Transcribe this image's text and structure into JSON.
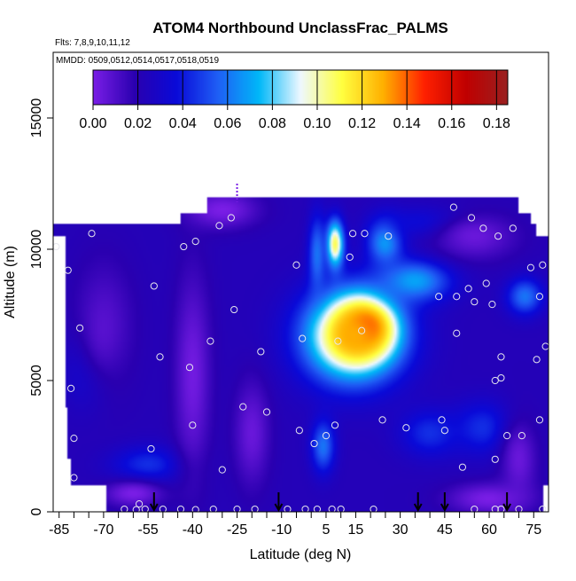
{
  "chart_data": {
    "type": "heatmap",
    "title": "ATOM4 Northbound UnclassFrac_PALMS",
    "subtitle_flights": "Flts: 7,8,9,10,11,12",
    "subtitle_dates": "MMDD: 0509,0512,0514,0517,0518,0519",
    "xlabel": "Latitude (deg N)",
    "ylabel": "Altitude (m)",
    "xlim": [
      -87,
      80
    ],
    "ylim": [
      0,
      17500
    ],
    "x_ticks": [
      -85,
      -70,
      -55,
      -40,
      -25,
      -10,
      5,
      15,
      30,
      45,
      60,
      75
    ],
    "x_minor_ticks": [
      -80,
      -75,
      -65,
      -60,
      -50,
      -45,
      -35,
      -30,
      -20,
      -15,
      -5,
      0,
      10,
      20,
      25,
      35,
      40,
      50,
      55,
      65,
      70
    ],
    "y_ticks": [
      0,
      5000,
      10000,
      15000
    ],
    "colorbar": {
      "min": 0.0,
      "max": 0.185,
      "tick_values": [
        0.0,
        0.02,
        0.04,
        0.06,
        0.08,
        0.1,
        0.12,
        0.14,
        0.16,
        0.18
      ],
      "tick_labels": [
        "0.00",
        "0.02",
        "0.04",
        "0.06",
        "0.08",
        "0.10",
        "0.12",
        "0.14",
        "0.16",
        "0.18"
      ],
      "colors": [
        "#7a1ee6",
        "#2a00b0",
        "#0a0ad8",
        "#1f5ef5",
        "#00b8f8",
        "#eef8ff",
        "#ffff40",
        "#ffb000",
        "#ff2000",
        "#c00000",
        "#9a2020"
      ]
    },
    "data_extent": {
      "rows": [
        {
          "alt_min": 0,
          "alt_max": 1000,
          "lat_min": -69,
          "lat_max": 78
        },
        {
          "alt_min": 1000,
          "alt_max": 2000,
          "lat_min": -81,
          "lat_max": 80
        },
        {
          "alt_min": 2000,
          "alt_max": 4000,
          "lat_min": -82,
          "lat_max": 80
        },
        {
          "alt_min": 4000,
          "alt_max": 10500,
          "lat_min": -83,
          "lat_max": 80
        },
        {
          "alt_min": 10500,
          "alt_max": 11000,
          "lat_min": -87,
          "lat_max": 76
        },
        {
          "alt_min": 11000,
          "alt_max": 11400,
          "lat_min": -44,
          "lat_max": 74
        },
        {
          "alt_min": 11400,
          "alt_max": 12000,
          "lat_min": -35,
          "lat_max": 70
        }
      ]
    },
    "hotspots": [
      {
        "lat": 18,
        "alt": 7000,
        "value": 0.18,
        "radius_lat": 9,
        "radius_alt": 1000
      },
      {
        "lat": 14,
        "alt": 6700,
        "value": 0.13,
        "radius_lat": 16,
        "radius_alt": 1700
      },
      {
        "lat": 8,
        "alt": 10200,
        "value": 0.11,
        "radius_lat": 3,
        "radius_alt": 900
      },
      {
        "lat": 25,
        "alt": 10300,
        "value": 0.07,
        "radius_lat": 6,
        "radius_alt": 900
      },
      {
        "lat": 35,
        "alt": 8800,
        "value": 0.07,
        "radius_lat": 12,
        "radius_alt": 800
      },
      {
        "lat": 72,
        "alt": 8200,
        "value": 0.06,
        "radius_lat": 6,
        "radius_alt": 700
      },
      {
        "lat": 4,
        "alt": 2500,
        "value": 0.06,
        "radius_lat": 4,
        "radius_alt": 1000
      },
      {
        "lat": 2,
        "alt": 9800,
        "value": 0.06,
        "radius_lat": 3,
        "radius_alt": 1500
      },
      {
        "lat": -55,
        "alt": 1800,
        "value": 0.045,
        "radius_lat": 12,
        "radius_alt": 700
      },
      {
        "lat": 58,
        "alt": 3200,
        "value": 0.045,
        "radius_lat": 10,
        "radius_alt": 1000
      },
      {
        "lat": 40,
        "alt": 3000,
        "value": 0.045,
        "radius_lat": 10,
        "radius_alt": 900
      },
      {
        "lat": -75,
        "alt": 5500,
        "value": 0.04,
        "radius_lat": 8,
        "radius_alt": 1500
      },
      {
        "lat": 40,
        "alt": 11000,
        "value": 0.04,
        "radius_lat": 15,
        "radius_alt": 600
      },
      {
        "lat": -40,
        "alt": 5200,
        "value": 0.002,
        "radius_lat": 6,
        "radius_alt": 3800
      },
      {
        "lat": -70,
        "alt": 7000,
        "value": 0.008,
        "radius_lat": 10,
        "radius_alt": 2500
      },
      {
        "lat": -30,
        "alt": 11500,
        "value": 0.0,
        "radius_lat": 12,
        "radius_alt": 700
      },
      {
        "lat": -20,
        "alt": 3000,
        "value": 0.004,
        "radius_lat": 6,
        "radius_alt": 2000
      },
      {
        "lat": 60,
        "alt": 500,
        "value": 0.0,
        "radius_lat": 14,
        "radius_alt": 600
      },
      {
        "lat": 55,
        "alt": 10500,
        "value": 0.004,
        "radius_lat": 14,
        "radius_alt": 900
      },
      {
        "lat": -60,
        "alt": 700,
        "value": 0.0,
        "radius_lat": 10,
        "radius_alt": 500
      },
      {
        "lat": 70,
        "alt": 2000,
        "value": 0.004,
        "radius_lat": 6,
        "radius_alt": 1500
      }
    ],
    "background_value": 0.022,
    "observation_points": [
      {
        "lat": -86,
        "alt": 10100
      },
      {
        "lat": -74,
        "alt": 10600
      },
      {
        "lat": -82,
        "alt": 9200
      },
      {
        "lat": -78,
        "alt": 7000
      },
      {
        "lat": -81,
        "alt": 4700
      },
      {
        "lat": -80,
        "alt": 2800
      },
      {
        "lat": -80,
        "alt": 1300
      },
      {
        "lat": -53,
        "alt": 8600
      },
      {
        "lat": -51,
        "alt": 5900
      },
      {
        "lat": -54,
        "alt": 2400
      },
      {
        "lat": -58,
        "alt": 300
      },
      {
        "lat": -43,
        "alt": 10100
      },
      {
        "lat": -39,
        "alt": 10300
      },
      {
        "lat": -41,
        "alt": 5500
      },
      {
        "lat": -40,
        "alt": 3300
      },
      {
        "lat": -34,
        "alt": 6500
      },
      {
        "lat": -31,
        "alt": 10900
      },
      {
        "lat": -27,
        "alt": 11200
      },
      {
        "lat": -30,
        "alt": 1600
      },
      {
        "lat": -26,
        "alt": 7700
      },
      {
        "lat": -23,
        "alt": 4000
      },
      {
        "lat": -17,
        "alt": 6100
      },
      {
        "lat": -15,
        "alt": 3800
      },
      {
        "lat": -5,
        "alt": 9400
      },
      {
        "lat": -4,
        "alt": 3100
      },
      {
        "lat": -3,
        "alt": 6600
      },
      {
        "lat": 1,
        "alt": 2600
      },
      {
        "lat": 5,
        "alt": 2900
      },
      {
        "lat": 9,
        "alt": 6500
      },
      {
        "lat": 8,
        "alt": 3300
      },
      {
        "lat": 13,
        "alt": 9700
      },
      {
        "lat": 14,
        "alt": 10600
      },
      {
        "lat": 18,
        "alt": 10600
      },
      {
        "lat": 17,
        "alt": 6900
      },
      {
        "lat": 24,
        "alt": 3500
      },
      {
        "lat": 26,
        "alt": 10500
      },
      {
        "lat": 32,
        "alt": 3200
      },
      {
        "lat": 43,
        "alt": 8200
      },
      {
        "lat": 44,
        "alt": 3500
      },
      {
        "lat": 45,
        "alt": 3100
      },
      {
        "lat": 48,
        "alt": 11600
      },
      {
        "lat": 49,
        "alt": 8200
      },
      {
        "lat": 49,
        "alt": 6800
      },
      {
        "lat": 51,
        "alt": 1700
      },
      {
        "lat": 53,
        "alt": 8500
      },
      {
        "lat": 54,
        "alt": 11200
      },
      {
        "lat": 55,
        "alt": 8000
      },
      {
        "lat": 58,
        "alt": 10800
      },
      {
        "lat": 59,
        "alt": 8700
      },
      {
        "lat": 61,
        "alt": 7900
      },
      {
        "lat": 62,
        "alt": 2000
      },
      {
        "lat": 62,
        "alt": 5000
      },
      {
        "lat": 63,
        "alt": 10500
      },
      {
        "lat": 64,
        "alt": 5900
      },
      {
        "lat": 64,
        "alt": 5100
      },
      {
        "lat": 66,
        "alt": 2900
      },
      {
        "lat": 68,
        "alt": 10800
      },
      {
        "lat": 71,
        "alt": 2900
      },
      {
        "lat": 74,
        "alt": 9300
      },
      {
        "lat": 76,
        "alt": 5800
      },
      {
        "lat": 77,
        "alt": 3500
      },
      {
        "lat": 77,
        "alt": 8200
      },
      {
        "lat": 78,
        "alt": 9400
      },
      {
        "lat": 79,
        "alt": 6300
      },
      {
        "lat": -63,
        "alt": 100
      },
      {
        "lat": -59,
        "alt": 80
      },
      {
        "lat": -56,
        "alt": 100
      },
      {
        "lat": -50,
        "alt": 100
      },
      {
        "lat": -44,
        "alt": 100
      },
      {
        "lat": -39,
        "alt": 80
      },
      {
        "lat": -33,
        "alt": 100
      },
      {
        "lat": -25,
        "alt": 100
      },
      {
        "lat": -19,
        "alt": 100
      },
      {
        "lat": -8,
        "alt": 100
      },
      {
        "lat": -2,
        "alt": 100
      },
      {
        "lat": 2,
        "alt": 100
      },
      {
        "lat": 7,
        "alt": 100
      },
      {
        "lat": 10,
        "alt": 100
      },
      {
        "lat": 21,
        "alt": 100
      },
      {
        "lat": 55,
        "alt": 100
      },
      {
        "lat": 62,
        "alt": 100
      },
      {
        "lat": 64,
        "alt": 100
      },
      {
        "lat": 70,
        "alt": 100
      },
      {
        "lat": 78,
        "alt": 100
      }
    ],
    "arrow_latitudes": [
      -53,
      -11,
      36,
      45,
      66
    ],
    "spike_latitude": -25,
    "spike_alt_range": [
      11800,
      12500
    ]
  }
}
